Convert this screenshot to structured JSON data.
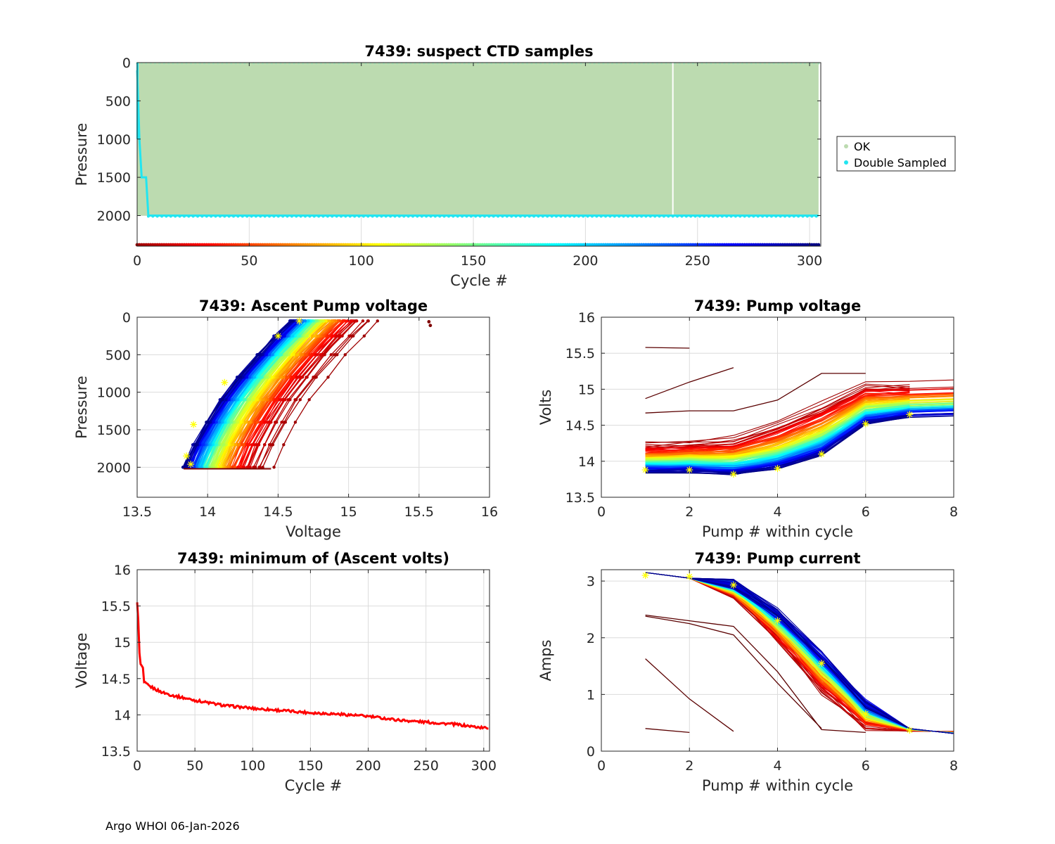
{
  "footer": "Argo WHOI 06-Jan-2026",
  "chart_data": [
    {
      "id": "suspect",
      "type": "scatter",
      "title": "7439: suspect CTD samples",
      "xlabel": "Cycle #",
      "ylabel": "Pressure",
      "xlim": [
        0,
        305
      ],
      "ylim": [
        0,
        2400
      ],
      "y_reversed": true,
      "xticks": [
        0,
        50,
        100,
        150,
        200,
        250,
        300
      ],
      "yticks": [
        0,
        500,
        1000,
        1500,
        2000
      ],
      "ok_color": "#bcdbb0",
      "double_color": "#22e5f0",
      "ok_band": {
        "cycles": [
          0,
          304
        ],
        "pressure": [
          0,
          2000
        ],
        "gap_cycle": 239
      },
      "double_sampled_line": [
        [
          0,
          100
        ],
        [
          1,
          1000
        ],
        [
          2,
          1500
        ],
        [
          4,
          1500
        ],
        [
          5,
          2000
        ],
        [
          304,
          2000
        ]
      ],
      "colorbar_pressure": 2400,
      "legend": {
        "placement": "right",
        "entries": [
          "OK",
          "Double Sampled"
        ]
      }
    },
    {
      "id": "ascent",
      "type": "line",
      "title": "7439: Ascent Pump voltage",
      "xlabel": "Voltage",
      "ylabel": "Pressure",
      "xlim": [
        13.5,
        16
      ],
      "ylim": [
        0,
        2400
      ],
      "y_reversed": true,
      "xticks": [
        13.5,
        14,
        14.5,
        15,
        15.5,
        16
      ],
      "xtick_labels": [
        "13.5",
        "14",
        "14.5",
        "15",
        "15.5",
        "16"
      ],
      "yticks": [
        0,
        500,
        1000,
        1500,
        2000
      ],
      "cycles": 304,
      "voltage_at_2000_range": [
        13.83,
        14.45
      ],
      "voltage_at_0_range": [
        14.62,
        15.22
      ],
      "stars": [
        [
          13.85,
          1850
        ],
        [
          13.88,
          1960
        ],
        [
          13.9,
          1430
        ],
        [
          14.12,
          870
        ],
        [
          14.5,
          250
        ],
        [
          14.65,
          50
        ]
      ]
    },
    {
      "id": "pumpv",
      "type": "line",
      "title": "7439: Pump voltage",
      "xlabel": "Pump # within cycle",
      "ylabel": "Volts",
      "xlim": [
        0,
        8
      ],
      "ylim": [
        13.5,
        16
      ],
      "xticks": [
        0,
        2,
        4,
        6,
        8
      ],
      "yticks": [
        13.5,
        14,
        14.5,
        15,
        15.5,
        16
      ],
      "ytick_labels": [
        "13.5",
        "14",
        "14.5",
        "15",
        "15.5",
        "16"
      ],
      "series_first_profile": [
        14.25,
        14.28,
        14.34,
        14.55,
        14.82,
        15.1,
        15.08
      ],
      "series_last_profile": [
        13.85,
        13.86,
        13.82,
        13.9,
        14.1,
        14.52,
        14.62
      ],
      "outliers": [
        [
          [
            1,
            15.58
          ],
          [
            2,
            15.57
          ]
        ],
        [
          [
            1,
            14.87
          ],
          [
            2,
            15.1
          ],
          [
            3,
            15.3
          ]
        ],
        [
          [
            1,
            14.67
          ],
          [
            2,
            14.7
          ],
          [
            3,
            14.7
          ],
          [
            4,
            14.85
          ],
          [
            5,
            15.22
          ],
          [
            6,
            15.22
          ]
        ]
      ],
      "stars": [
        [
          1,
          13.88
        ],
        [
          2,
          13.88
        ],
        [
          3,
          13.82
        ],
        [
          4,
          13.9
        ],
        [
          5,
          14.1
        ],
        [
          6,
          14.52
        ],
        [
          7,
          14.65
        ]
      ]
    },
    {
      "id": "minv",
      "type": "line",
      "title": "7439: minimum of (Ascent volts)",
      "xlabel": "Cycle #",
      "ylabel": "Voltage",
      "xlim": [
        0,
        305
      ],
      "ylim": [
        13.5,
        16
      ],
      "xticks": [
        0,
        50,
        100,
        150,
        200,
        250,
        300
      ],
      "yticks": [
        13.5,
        14,
        14.5,
        15,
        15.5,
        16
      ],
      "ytick_labels": [
        "13.5",
        "14",
        "14.5",
        "15",
        "15.5",
        "16"
      ],
      "color": "#ff0000",
      "points": [
        [
          0,
          15.55
        ],
        [
          1,
          15.3
        ],
        [
          2,
          14.85
        ],
        [
          3,
          14.7
        ],
        [
          5,
          14.65
        ],
        [
          6,
          14.45
        ],
        [
          10,
          14.4
        ],
        [
          20,
          14.32
        ],
        [
          30,
          14.27
        ],
        [
          50,
          14.2
        ],
        [
          75,
          14.13
        ],
        [
          100,
          14.09
        ],
        [
          125,
          14.06
        ],
        [
          150,
          14.03
        ],
        [
          175,
          14.01
        ],
        [
          200,
          13.98
        ],
        [
          225,
          13.93
        ],
        [
          250,
          13.9
        ],
        [
          275,
          13.87
        ],
        [
          300,
          13.82
        ],
        [
          304,
          13.82
        ]
      ]
    },
    {
      "id": "pumpc",
      "type": "line",
      "title": "7439: Pump current",
      "xlabel": "Pump # within cycle",
      "ylabel": "Amps",
      "xlim": [
        0,
        8
      ],
      "ylim": [
        0,
        3.2
      ],
      "xticks": [
        0,
        2,
        4,
        6,
        8
      ],
      "yticks": [
        0,
        1,
        2,
        3
      ],
      "series_first_profile": [
        3.15,
        3.05,
        2.75,
        1.9,
        1.0,
        0.38,
        0.35
      ],
      "series_last_profile": [
        3.15,
        3.05,
        2.95,
        2.45,
        1.7,
        0.85,
        0.4,
        0.31
      ],
      "outliers": [
        [
          [
            1,
            2.4
          ],
          [
            2,
            2.3
          ],
          [
            3,
            2.2
          ],
          [
            4,
            1.4
          ],
          [
            5,
            0.38
          ],
          [
            6,
            0.33
          ]
        ],
        [
          [
            1,
            2.38
          ],
          [
            2,
            2.25
          ],
          [
            3,
            2.05
          ],
          [
            4,
            1.2
          ],
          [
            5,
            0.4
          ]
        ],
        [
          [
            1,
            1.63
          ],
          [
            2,
            0.92
          ],
          [
            3,
            0.35
          ]
        ],
        [
          [
            1,
            0.4
          ],
          [
            2,
            0.33
          ]
        ]
      ],
      "stars": [
        [
          1,
          3.1
        ],
        [
          2,
          3.08
        ],
        [
          3,
          2.93
        ],
        [
          4,
          2.3
        ],
        [
          5,
          1.55
        ],
        [
          6,
          0.66
        ],
        [
          7,
          0.37
        ]
      ]
    }
  ]
}
